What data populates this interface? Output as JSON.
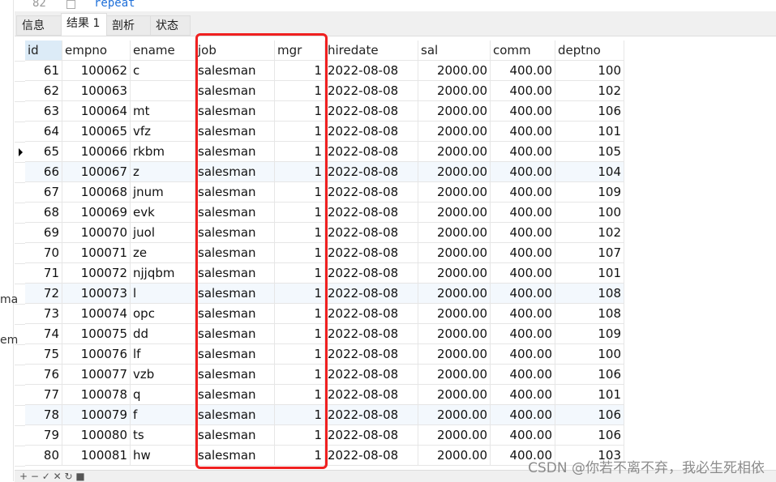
{
  "editor": {
    "line_number": "82",
    "code": "repeat"
  },
  "left_panel": [
    "ma",
    "em"
  ],
  "tabs": [
    {
      "label": "信息"
    },
    {
      "label": "结果 1"
    },
    {
      "label": "剖析"
    },
    {
      "label": "状态"
    }
  ],
  "active_tab": "结果 1",
  "columns": [
    "id",
    "empno",
    "ename",
    "job",
    "mgr",
    "hiredate",
    "sal",
    "comm",
    "deptno"
  ],
  "rows": [
    [
      "61",
      "100062",
      "c",
      "salesman",
      "1",
      "2022-08-08",
      "2000.00",
      "400.00",
      "100"
    ],
    [
      "62",
      "100063",
      "",
      "salesman",
      "1",
      "2022-08-08",
      "2000.00",
      "400.00",
      "102"
    ],
    [
      "63",
      "100064",
      "mt",
      "salesman",
      "1",
      "2022-08-08",
      "2000.00",
      "400.00",
      "106"
    ],
    [
      "64",
      "100065",
      "vfz",
      "salesman",
      "1",
      "2022-08-08",
      "2000.00",
      "400.00",
      "101"
    ],
    [
      "65",
      "100066",
      "rkbm",
      "salesman",
      "1",
      "2022-08-08",
      "2000.00",
      "400.00",
      "105"
    ],
    [
      "66",
      "100067",
      "z",
      "salesman",
      "1",
      "2022-08-08",
      "2000.00",
      "400.00",
      "104"
    ],
    [
      "67",
      "100068",
      "jnum",
      "salesman",
      "1",
      "2022-08-08",
      "2000.00",
      "400.00",
      "109"
    ],
    [
      "68",
      "100069",
      "evk",
      "salesman",
      "1",
      "2022-08-08",
      "2000.00",
      "400.00",
      "100"
    ],
    [
      "69",
      "100070",
      "juol",
      "salesman",
      "1",
      "2022-08-08",
      "2000.00",
      "400.00",
      "102"
    ],
    [
      "70",
      "100071",
      "ze",
      "salesman",
      "1",
      "2022-08-08",
      "2000.00",
      "400.00",
      "107"
    ],
    [
      "71",
      "100072",
      "njjqbm",
      "salesman",
      "1",
      "2022-08-08",
      "2000.00",
      "400.00",
      "101"
    ],
    [
      "72",
      "100073",
      "l",
      "salesman",
      "1",
      "2022-08-08",
      "2000.00",
      "400.00",
      "108"
    ],
    [
      "73",
      "100074",
      "opc",
      "salesman",
      "1",
      "2022-08-08",
      "2000.00",
      "400.00",
      "108"
    ],
    [
      "74",
      "100075",
      "dd",
      "salesman",
      "1",
      "2022-08-08",
      "2000.00",
      "400.00",
      "109"
    ],
    [
      "75",
      "100076",
      "lf",
      "salesman",
      "1",
      "2022-08-08",
      "2000.00",
      "400.00",
      "100"
    ],
    [
      "76",
      "100077",
      "vzb",
      "salesman",
      "1",
      "2022-08-08",
      "2000.00",
      "400.00",
      "106"
    ],
    [
      "77",
      "100078",
      "q",
      "salesman",
      "1",
      "2022-08-08",
      "2000.00",
      "400.00",
      "101"
    ],
    [
      "78",
      "100079",
      "f",
      "salesman",
      "1",
      "2022-08-08",
      "2000.00",
      "400.00",
      "106"
    ],
    [
      "79",
      "100080",
      "ts",
      "salesman",
      "1",
      "2022-08-08",
      "2000.00",
      "400.00",
      "106"
    ],
    [
      "80",
      "100081",
      "hw",
      "salesman",
      "1",
      "2022-08-08",
      "2000.00",
      "400.00",
      "103"
    ]
  ],
  "current_row": "65",
  "highlight_color": "#f02020",
  "bottom_toolbar": "+ − ✓ ✕ ↻ ■",
  "watermark": "CSDN @你若不离不弃，我必生死相依"
}
